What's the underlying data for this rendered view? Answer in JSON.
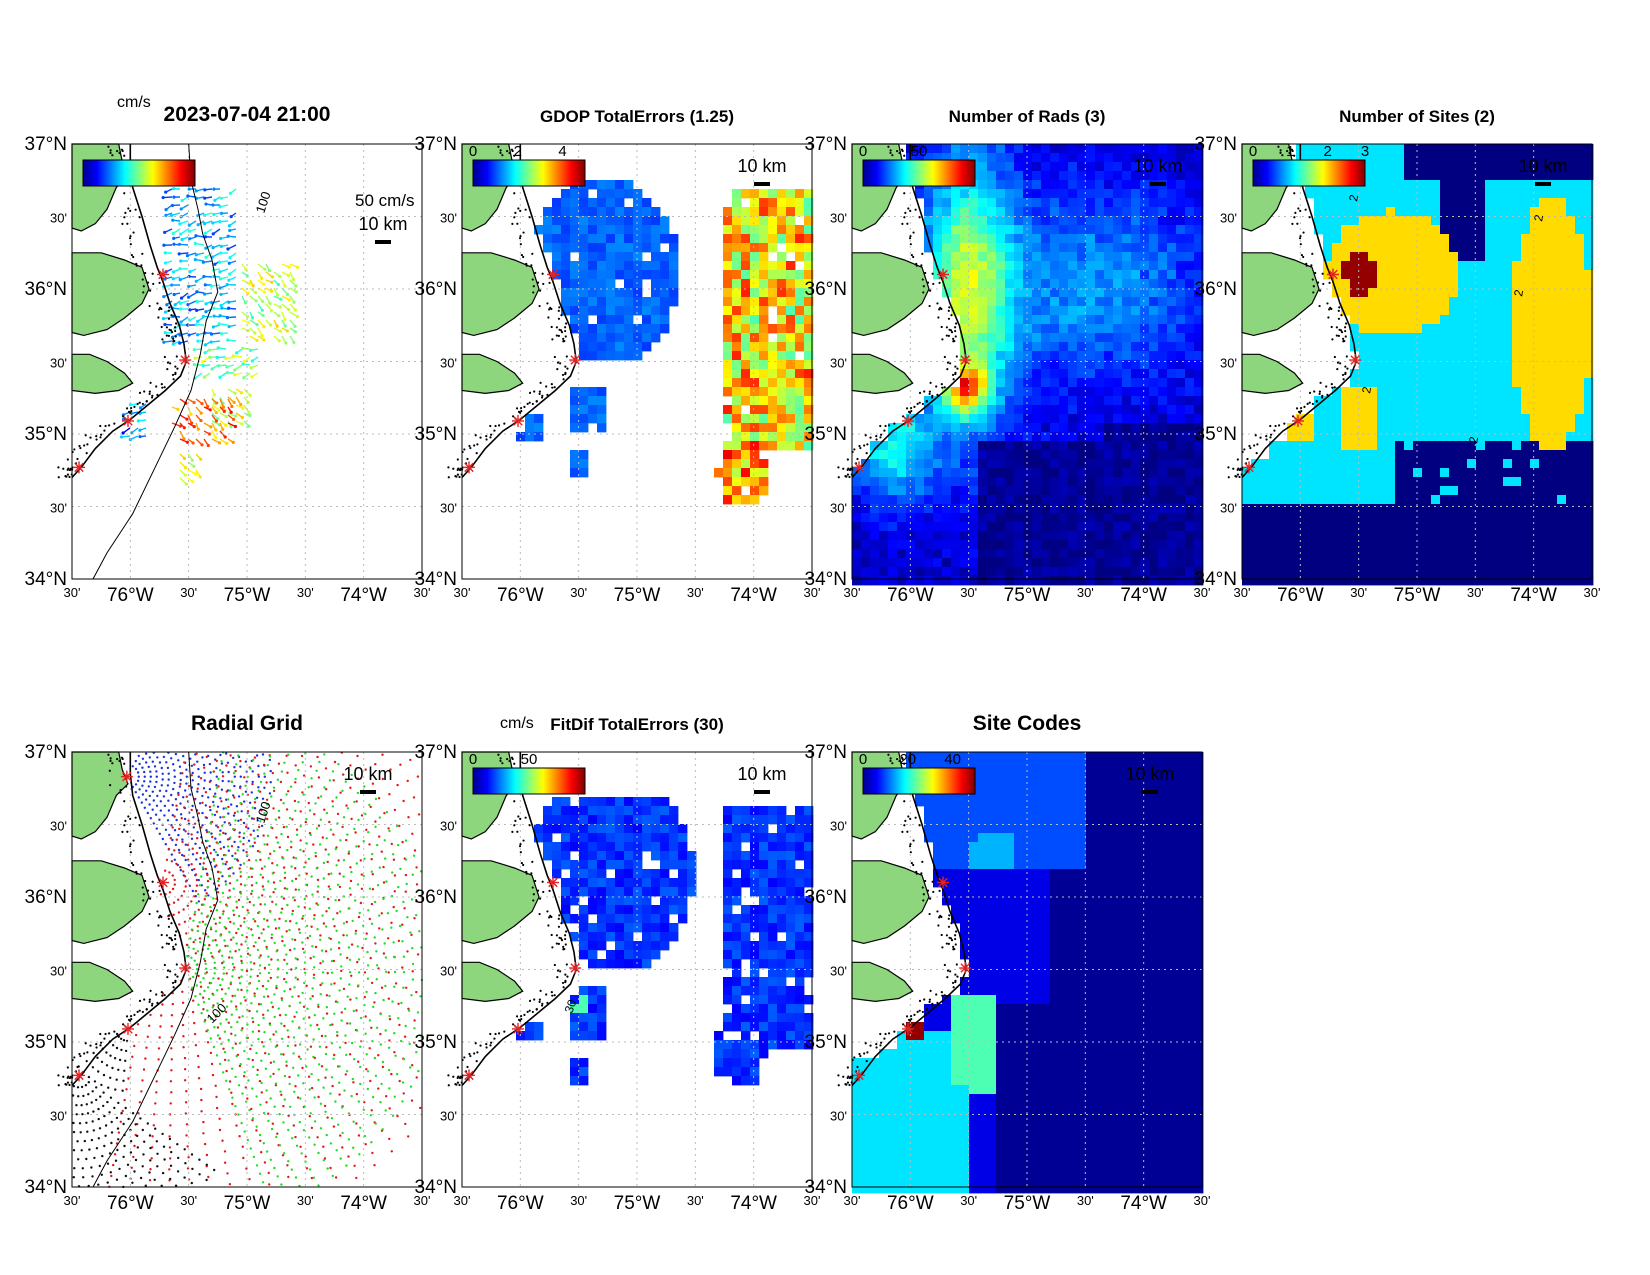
{
  "figure": {
    "timestamp": "2023-07-04 21:00"
  },
  "axes_ticks": {
    "lat_labels": [
      "37°N",
      "30'",
      "36°N",
      "30'",
      "35°N",
      "30'",
      "34°N"
    ],
    "lon_labels": [
      "30'",
      "76°W",
      "30'",
      "75°W",
      "30'",
      "74°W",
      "30'"
    ]
  },
  "scale_bar_label": "10 km",
  "colormap": "jet",
  "colors": {
    "land": "#8ed67e",
    "ocean": "#ffffff",
    "site_marker": "#e32222",
    "grid": "#bbbbbb",
    "site_blue": "#1a33e0",
    "site_red": "#e01a1a",
    "site_green": "#22dd22",
    "site_black": "#111111"
  },
  "sites": [
    {
      "lon": -76.03,
      "lat": 36.83
    },
    {
      "lon": -75.72,
      "lat": 36.1
    },
    {
      "lon": -75.53,
      "lat": 35.51
    },
    {
      "lon": -76.02,
      "lat": 35.09
    },
    {
      "lon": -76.44,
      "lat": 34.77
    }
  ],
  "isobath": {
    "label": "100",
    "points": [
      [
        -75.5,
        37.0
      ],
      [
        -75.48,
        36.75
      ],
      [
        -75.42,
        36.55
      ],
      [
        -75.38,
        36.38
      ],
      [
        -75.3,
        36.2
      ],
      [
        -75.25,
        35.98
      ],
      [
        -75.35,
        35.78
      ],
      [
        -75.4,
        35.55
      ],
      [
        -75.48,
        35.3
      ],
      [
        -75.62,
        35.05
      ],
      [
        -75.8,
        34.75
      ],
      [
        -75.98,
        34.45
      ],
      [
        -76.2,
        34.18
      ],
      [
        -76.32,
        34.0
      ]
    ]
  },
  "panels": [
    {
      "id": "totals",
      "timestamp_title": true,
      "colorbar_unit": "cm/s",
      "colorbar_ticks": [],
      "legend_arrow_label": "50 cm/s",
      "isobath_label": "100"
    },
    {
      "id": "gdop",
      "title": "GDOP TotalErrors (1.25)",
      "colorbar_ticks": [
        "0",
        "2",
        "4"
      ],
      "colorbar_range": [
        0,
        5
      ]
    },
    {
      "id": "nrads",
      "title": "Number of Rads (3)",
      "colorbar_ticks": [
        "0",
        "50"
      ],
      "colorbar_range": [
        0,
        100
      ]
    },
    {
      "id": "nsites",
      "title": "Number of Sites (2)",
      "colorbar_ticks": [
        "0",
        "1",
        "2",
        "3"
      ],
      "colorbar_range": [
        0,
        3
      ],
      "contour_label": "2"
    },
    {
      "id": "radgrid",
      "title": "Radial Grid",
      "isobath_label": "100"
    },
    {
      "id": "fitdif",
      "title": "FitDif TotalErrors (30)",
      "colorbar_unit": "cm/s",
      "colorbar_ticks": [
        "0",
        "50"
      ],
      "colorbar_range": [
        0,
        100
      ],
      "contour_label": "30"
    },
    {
      "id": "sitecodes",
      "title": "Site Codes",
      "colorbar_ticks": [
        "0",
        "20",
        "40"
      ],
      "colorbar_range": [
        0,
        50
      ]
    }
  ]
}
